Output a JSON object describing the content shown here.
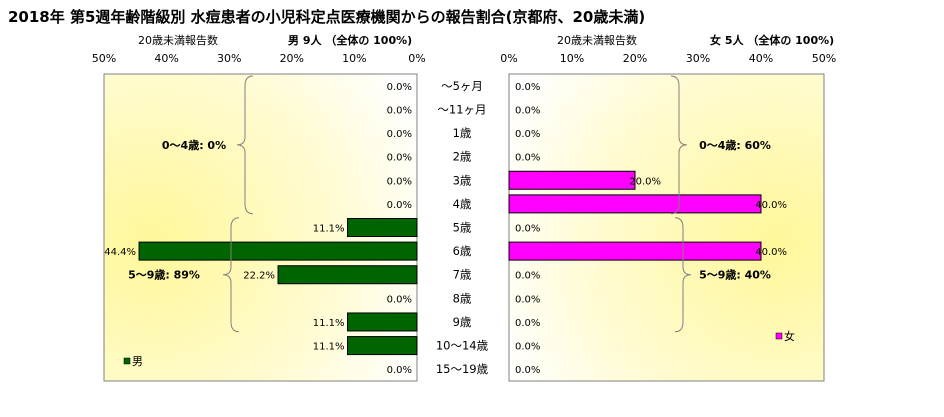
{
  "chart_data": {
    "type": "bar",
    "title": "2018年 第5週年齢階級別 水痘患者の小児科定点医療機関からの報告割合(京都府、20歳未満)",
    "categories": [
      "～5ヶ月",
      "～11ヶ月",
      "1歳",
      "2歳",
      "3歳",
      "4歳",
      "5歳",
      "6歳",
      "7歳",
      "8歳",
      "9歳",
      "10～14歳",
      "15～19歳"
    ],
    "axis_ticks": [
      "0%",
      "10%",
      "20%",
      "30%",
      "40%",
      "50%"
    ],
    "xlim": [
      0,
      50
    ],
    "grid": false,
    "series": [
      {
        "name": "男",
        "header_label": "20歳未満報告数",
        "header_count": "男  9人 （全体の  100%)",
        "values": [
          0,
          0,
          0,
          0,
          0,
          0,
          11.1,
          44.4,
          22.2,
          0,
          11.1,
          11.1,
          0
        ],
        "value_labels": [
          "0.0%",
          "0.0%",
          "0.0%",
          "0.0%",
          "0.0%",
          "0.0%",
          "11.1%",
          "44.4%",
          "22.2%",
          "0.0%",
          "11.1%",
          "11.1%",
          "0.0%"
        ],
        "color": "#006400",
        "legend_label": "男",
        "legend_position": "bottom-left",
        "groups": [
          {
            "label": "0～4歳: 0%",
            "from": 0,
            "to": 5
          },
          {
            "label": "5～9歳: 89%",
            "from": 6,
            "to": 10
          }
        ]
      },
      {
        "name": "女",
        "header_label": "20歳未満報告数",
        "header_count": "女  5人 （全体の  100%)",
        "values": [
          0,
          0,
          0,
          0,
          20.0,
          40.0,
          0,
          40.0,
          0,
          0,
          0,
          0,
          0
        ],
        "value_labels": [
          "0.0%",
          "0.0%",
          "0.0%",
          "0.0%",
          "20.0%",
          "40.0%",
          "0.0%",
          "40.0%",
          "0.0%",
          "0.0%",
          "0.0%",
          "0.0%",
          "0.0%"
        ],
        "color": "#ff00ff",
        "legend_label": "女",
        "legend_position": "bottom-right",
        "groups": [
          {
            "label": "0～4歳: 60%",
            "from": 0,
            "to": 5
          },
          {
            "label": "5～9歳: 40%",
            "from": 6,
            "to": 10
          }
        ]
      }
    ]
  }
}
